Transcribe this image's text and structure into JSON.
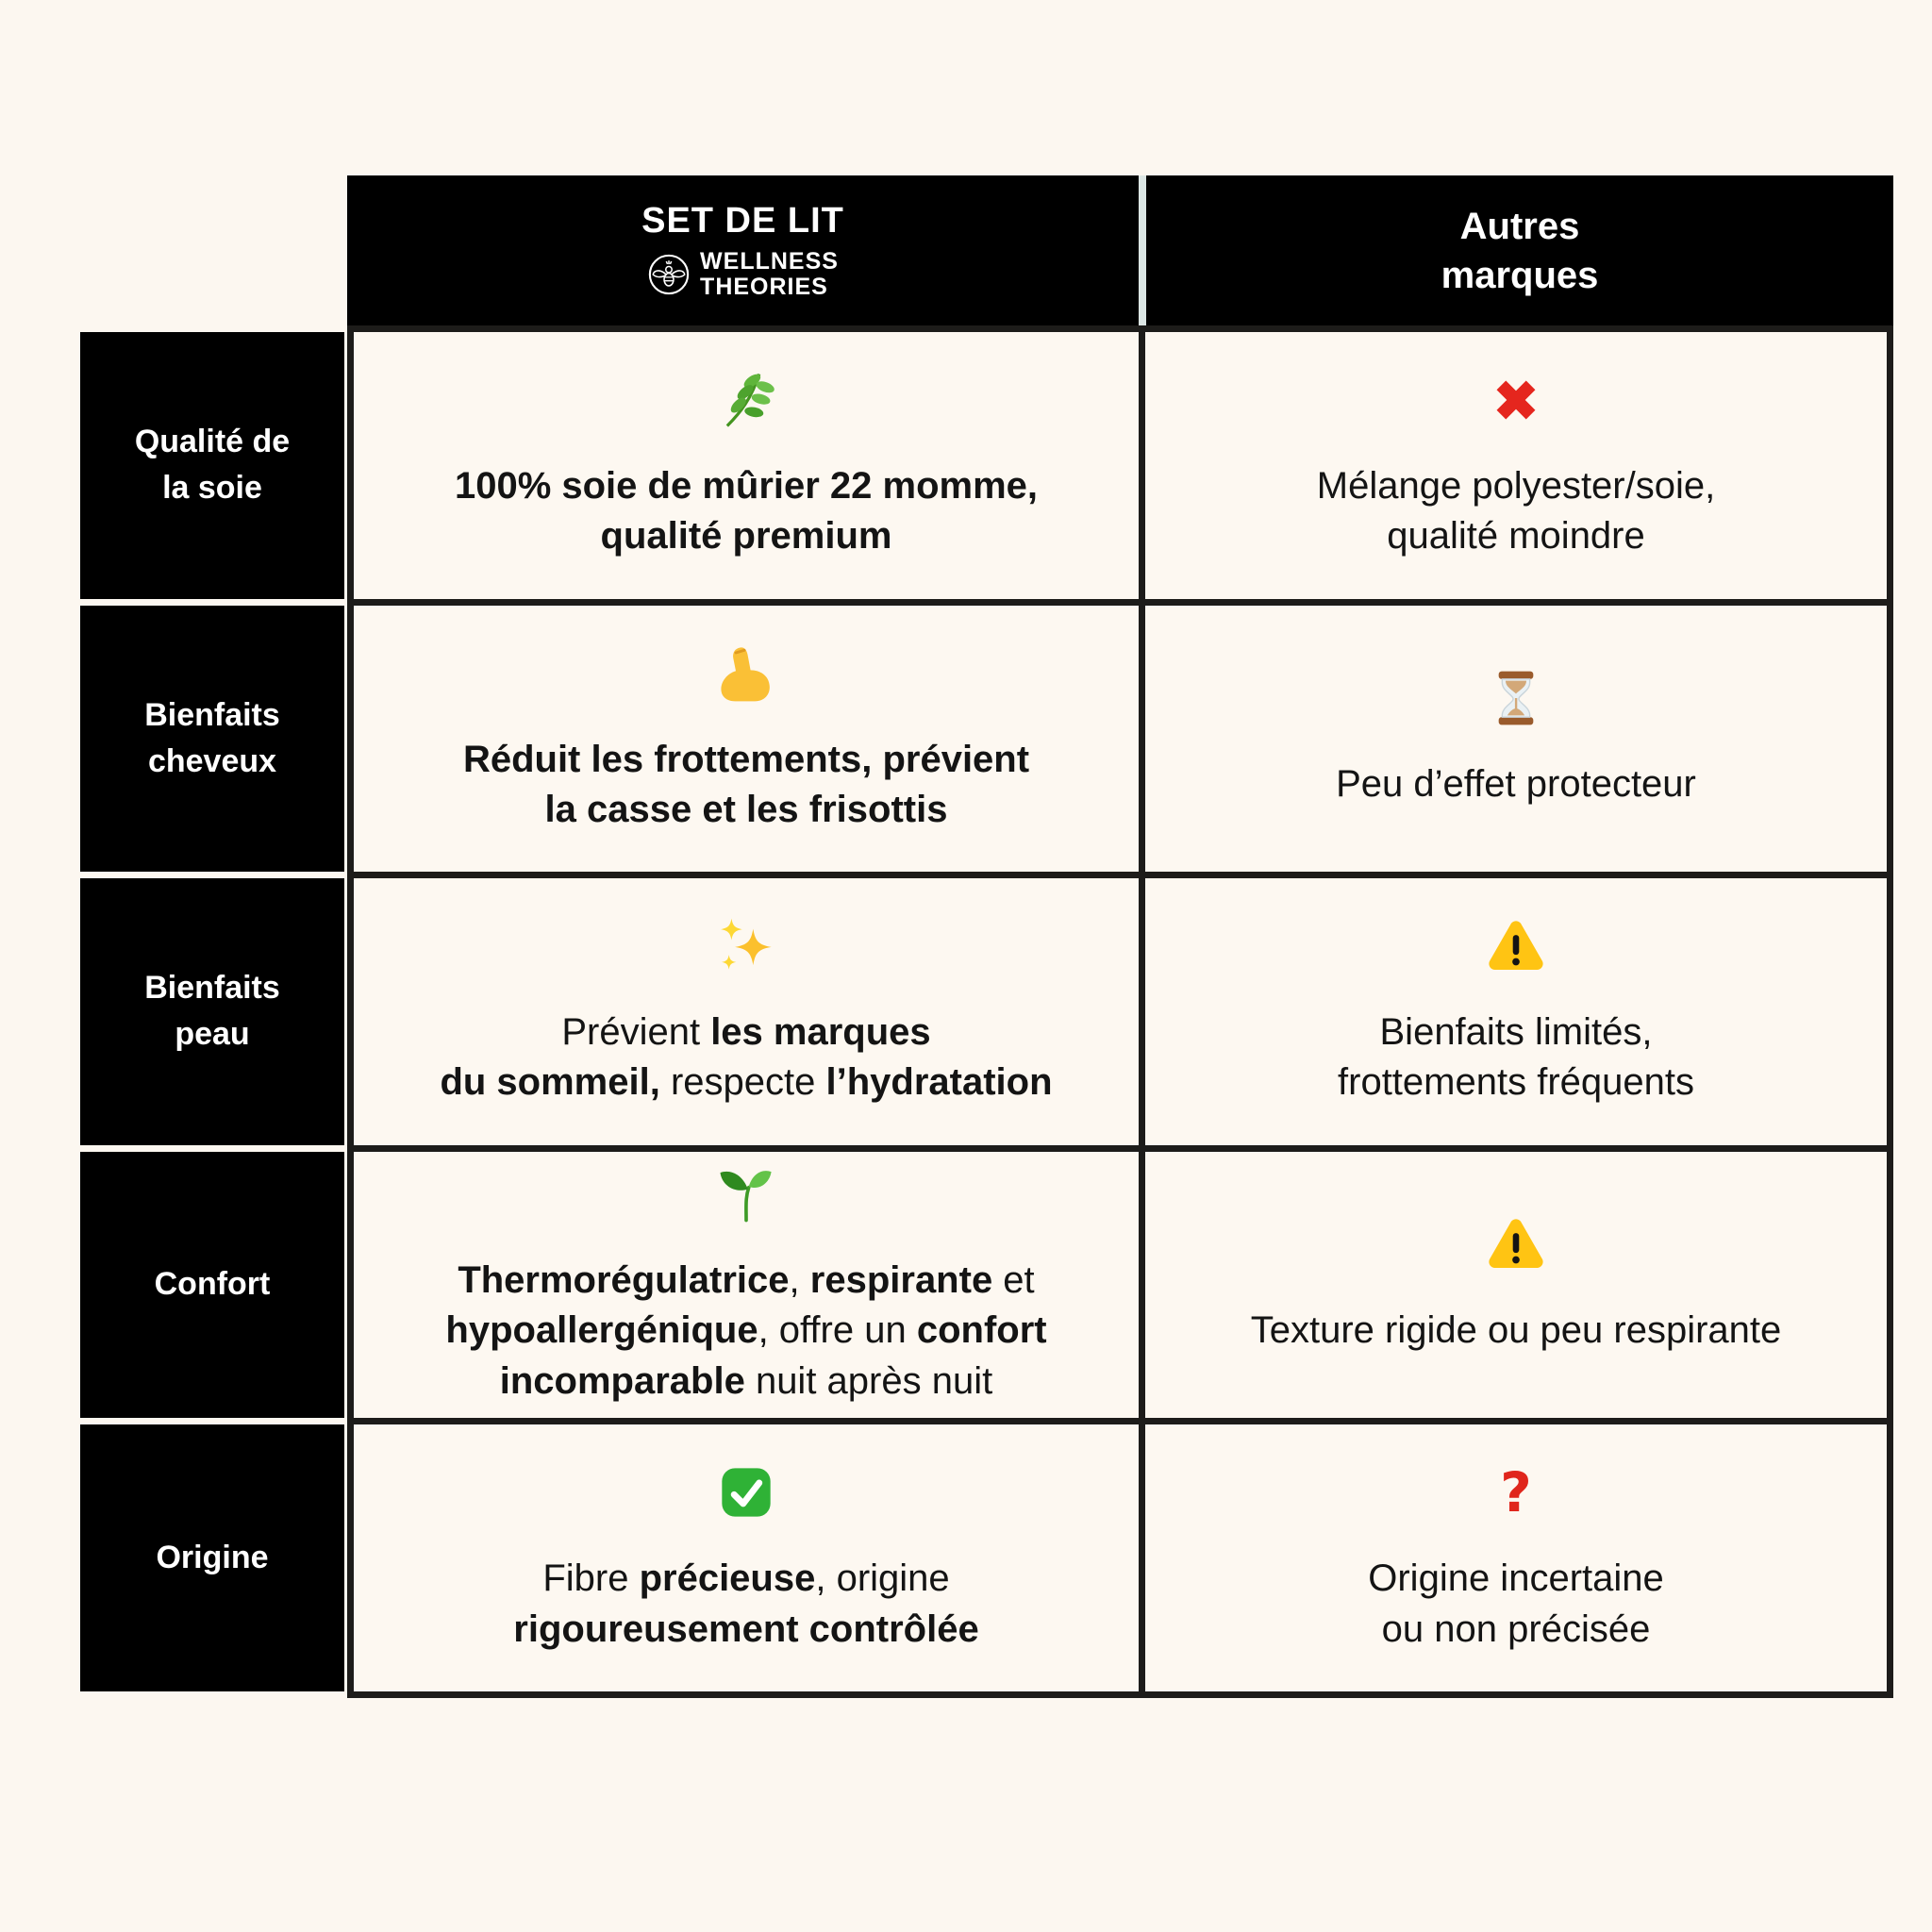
{
  "page": {
    "background_color": "#FCF7F0",
    "table_border_color": "#1D1C1A",
    "label_cell_color": "#000000",
    "content_cell_color": "#FDF8F1"
  },
  "header": {
    "brand_column": {
      "title": "SET DE LIT",
      "logo_icon": "bee-logo",
      "brand_lines": [
        "WELLNESS",
        "THEORIES"
      ]
    },
    "competitor_column": {
      "title": "Autres\nmarques"
    }
  },
  "rows": [
    {
      "label": "Qualité de\nla soie",
      "brand": {
        "icon": "herb",
        "segments": [
          {
            "text": "100% soie de mûrier 22 momme,\nqualité premium",
            "bold": true
          }
        ]
      },
      "competitor": {
        "icon": "cross-mark",
        "segments": [
          {
            "text": "Mélange polyester/soie,\nqualité moindre",
            "bold": false
          }
        ]
      }
    },
    {
      "label": "Bienfaits\ncheveux",
      "brand": {
        "icon": "flexed-biceps",
        "segments": [
          {
            "text": "Réduit les frottements, prévient\nla casse et les frisottis",
            "bold": true
          }
        ]
      },
      "competitor": {
        "icon": "hourglass",
        "segments": [
          {
            "text": "Peu d’effet protecteur",
            "bold": false
          }
        ]
      }
    },
    {
      "label": "Bienfaits\npeau",
      "brand": {
        "icon": "sparkles",
        "segments": [
          {
            "text": "Prévient ",
            "bold": false
          },
          {
            "text": "les marques\ndu sommeil,",
            "bold": true
          },
          {
            "text": " respecte ",
            "bold": false
          },
          {
            "text": "l’hydratation",
            "bold": true
          }
        ]
      },
      "competitor": {
        "icon": "warning",
        "segments": [
          {
            "text": "Bienfaits limités,\nfrottements fréquents",
            "bold": false
          }
        ]
      }
    },
    {
      "label": "Confort",
      "brand": {
        "icon": "seedling",
        "segments": [
          {
            "text": "Thermorégulatrice",
            "bold": true
          },
          {
            "text": ", ",
            "bold": false
          },
          {
            "text": "respirante",
            "bold": true
          },
          {
            "text": " et\n",
            "bold": false
          },
          {
            "text": "hypoallergénique",
            "bold": true
          },
          {
            "text": ", offre un ",
            "bold": false
          },
          {
            "text": "confort\nincomparable",
            "bold": true
          },
          {
            "text": " nuit après nuit",
            "bold": false
          }
        ]
      },
      "competitor": {
        "icon": "warning",
        "segments": [
          {
            "text": "Texture rigide ou peu respirante",
            "bold": false
          }
        ]
      }
    },
    {
      "label": "Origine",
      "brand": {
        "icon": "check-mark",
        "segments": [
          {
            "text": "Fibre ",
            "bold": false
          },
          {
            "text": "précieuse",
            "bold": true
          },
          {
            "text": ", origine\n",
            "bold": false
          },
          {
            "text": "rigoureusement contrôlée",
            "bold": true
          }
        ]
      },
      "competitor": {
        "icon": "question-mark",
        "segments": [
          {
            "text": "Origine incertaine\nou non précisée",
            "bold": false
          }
        ]
      }
    }
  ]
}
